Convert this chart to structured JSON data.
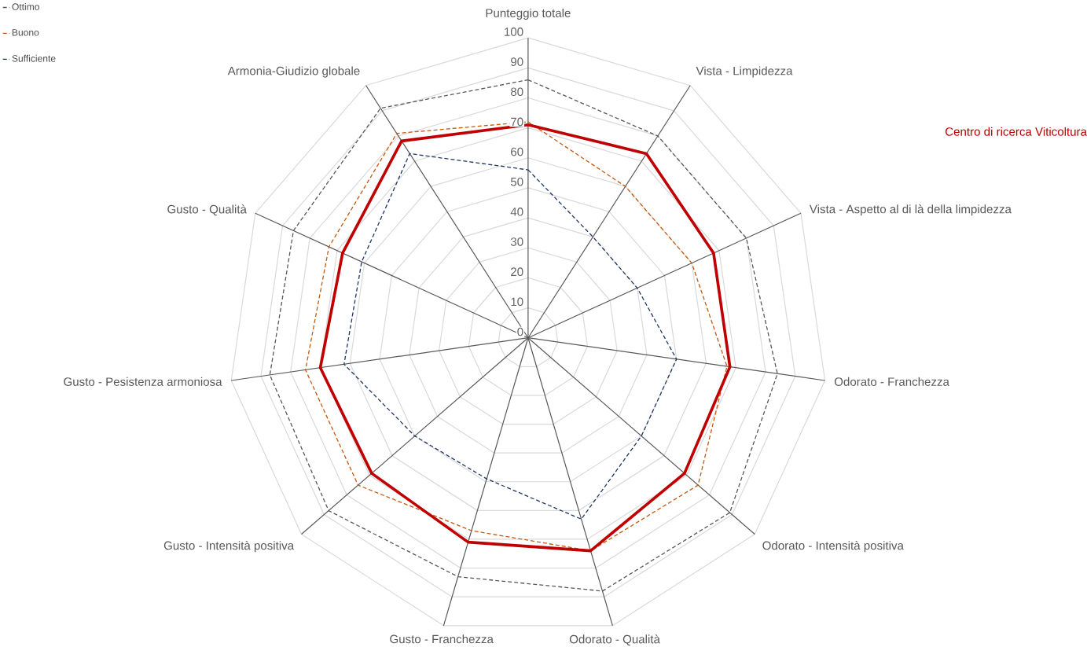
{
  "chart_data": {
    "type": "radar",
    "categories": [
      "Punteggio totale",
      "Vista - Limpidezza",
      "Vista - Aspetto al di là della limpidezza",
      "Odorato - Franchezza",
      "Odorato - Intensità positiva",
      "Odorato - Qualità",
      "Gusto - Franchezza",
      "Gusto - Intensità positiva",
      "Gusto - Pesistenza armoniosa",
      "Gusto - Qualità",
      "Armonia-Giudizio globale"
    ],
    "series": [
      {
        "name": "Ottimo",
        "color": "#595959",
        "line_style": "dashed",
        "values": [
          86,
          80,
          80,
          84,
          89,
          88,
          83,
          88,
          87,
          86,
          91
        ]
      },
      {
        "name": "Buono",
        "color": "#c55a11",
        "line_style": "dashed",
        "values": [
          72,
          60,
          60,
          67,
          75,
          74,
          67,
          75,
          75,
          73,
          81
        ]
      },
      {
        "name": "Sufficiente",
        "color": "#203864",
        "line_style": "dashed",
        "values": [
          56,
          40,
          40,
          50,
          50,
          63,
          49,
          50,
          62,
          61,
          73
        ]
      },
      {
        "color": "#c00000",
        "line_style": "solid",
        "values": [
          71,
          73,
          68,
          68,
          69,
          74,
          71,
          69,
          70,
          68,
          78
        ]
      }
    ],
    "ylim": [
      0,
      100
    ],
    "yticks": [
      0,
      10,
      20,
      30,
      40,
      50,
      60,
      70,
      80,
      90,
      100
    ],
    "grid": true,
    "legend": "top left",
    "annotations": [
      "Centro di ricerca Viticoltura"
    ]
  }
}
